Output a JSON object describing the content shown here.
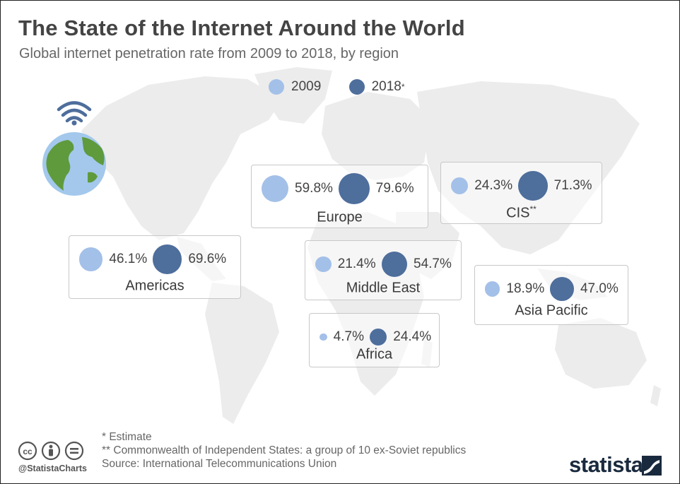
{
  "title": "The State of the Internet Around the World",
  "subtitle": "Global internet penetration rate from 2009 to 2018, by region",
  "colors": {
    "y2009": "#a3c0e8",
    "y2018": "#4e6e9c",
    "map": "#ececec",
    "brand": "#1a2a3e"
  },
  "legend": {
    "y2009": "2009",
    "y2018": "2018",
    "y2018_marker": "*"
  },
  "chart_data": {
    "type": "bubble-map",
    "unit": "%",
    "series": [
      {
        "name": "2009"
      },
      {
        "name": "2018"
      }
    ],
    "regions": [
      {
        "key": "europe",
        "name": "Europe",
        "marker": "",
        "v2009": 59.8,
        "v2018": 79.6,
        "l2009": "59.8%",
        "l2018": "79.6%"
      },
      {
        "key": "cis",
        "name": "CIS",
        "marker": "**",
        "v2009": 24.3,
        "v2018": 71.3,
        "l2009": "24.3%",
        "l2018": "71.3%"
      },
      {
        "key": "americas",
        "name": "Americas",
        "marker": "",
        "v2009": 46.1,
        "v2018": 69.6,
        "l2009": "46.1%",
        "l2018": "69.6%"
      },
      {
        "key": "middle_east",
        "name": "Middle East",
        "marker": "",
        "v2009": 21.4,
        "v2018": 54.7,
        "l2009": "21.4%",
        "l2018": "54.7%"
      },
      {
        "key": "asia_pacific",
        "name": "Asia Pacific",
        "marker": "",
        "v2009": 18.9,
        "v2018": 47.0,
        "l2009": "18.9%",
        "l2018": "47.0%"
      },
      {
        "key": "africa",
        "name": "Africa",
        "marker": "",
        "v2009": 4.7,
        "v2018": 24.4,
        "l2009": "4.7%",
        "l2018": "24.4%"
      }
    ]
  },
  "notes": {
    "estimate": "*   Estimate",
    "cis": "** Commonwealth of Independent States: a group of 10 ex-Soviet republics",
    "source": "Source: International Telecommunications Union"
  },
  "footer": {
    "handle": "@StatistaCharts",
    "brand": "statista"
  },
  "icons": [
    "wifi-icon",
    "globe-icon",
    "creative-commons-icon",
    "attribution-icon",
    "no-derivatives-icon",
    "statista-logo-icon"
  ]
}
